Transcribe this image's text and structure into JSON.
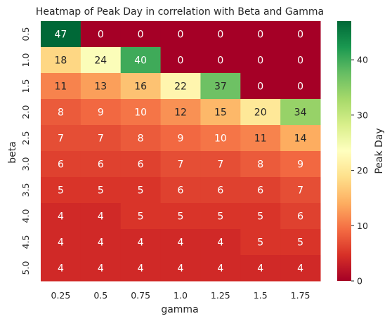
{
  "chart_data": {
    "type": "heatmap",
    "title": "Heatmap of Peak Day in correlation with Beta and Gamma",
    "xlabel": "gamma",
    "ylabel": "beta",
    "x_categories": [
      "0.25",
      "0.5",
      "0.75",
      "1.0",
      "1.25",
      "1.5",
      "1.75"
    ],
    "y_categories": [
      "0.5",
      "1.0",
      "1.5",
      "2.0",
      "2.5",
      "3.0",
      "3.5",
      "4.0",
      "4.5",
      "5.0"
    ],
    "values": [
      [
        47,
        0,
        0,
        0,
        0,
        0,
        0
      ],
      [
        18,
        24,
        40,
        0,
        0,
        0,
        0
      ],
      [
        11,
        13,
        16,
        22,
        37,
        0,
        0
      ],
      [
        8,
        9,
        10,
        12,
        15,
        20,
        34
      ],
      [
        7,
        7,
        8,
        9,
        10,
        11,
        14
      ],
      [
        6,
        6,
        6,
        7,
        7,
        8,
        9
      ],
      [
        5,
        5,
        5,
        6,
        6,
        6,
        7
      ],
      [
        4,
        4,
        5,
        5,
        5,
        5,
        6
      ],
      [
        4,
        4,
        4,
        4,
        4,
        5,
        5
      ],
      [
        4,
        4,
        4,
        4,
        4,
        4,
        4
      ]
    ],
    "colormap": "RdYlGn",
    "vmin": 0,
    "vmax": 47,
    "colorbar": {
      "label": "Peak Day",
      "ticks": [
        "0",
        "10",
        "20",
        "30",
        "40"
      ]
    }
  }
}
